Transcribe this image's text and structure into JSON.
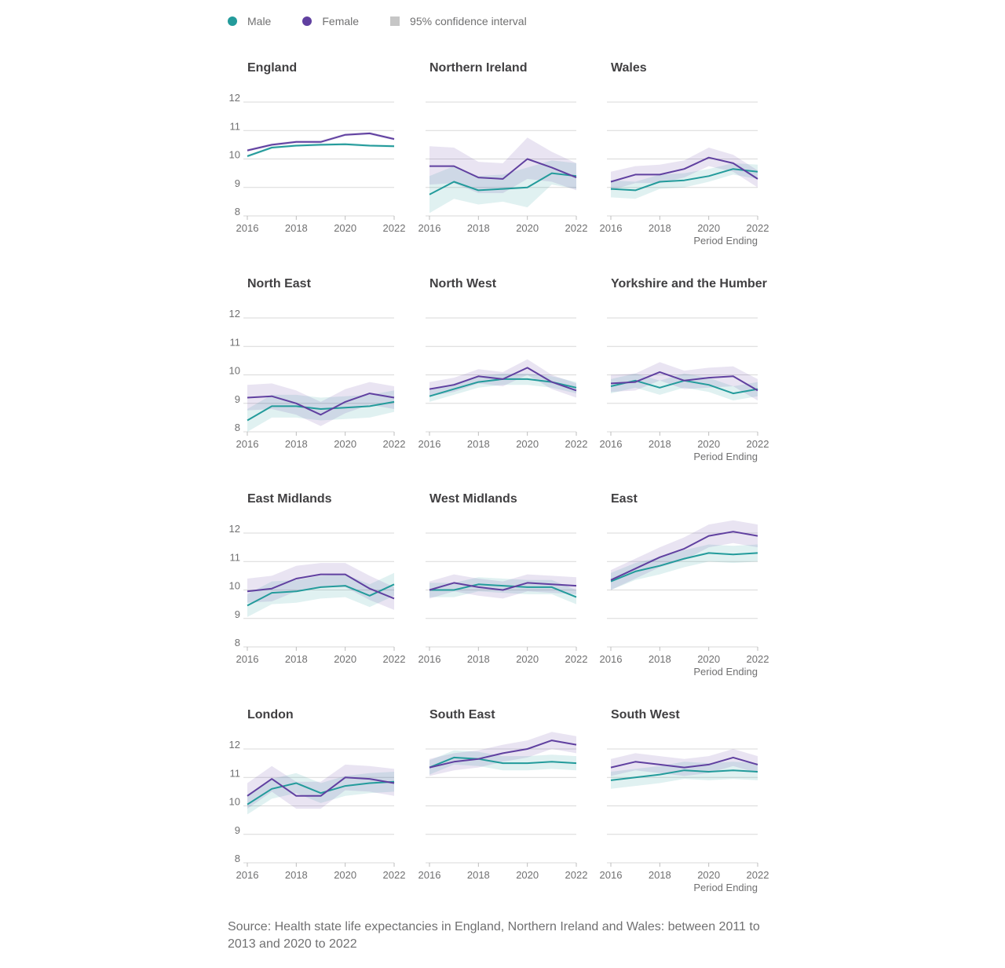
{
  "legend": {
    "male_label": "Male",
    "female_label": "Female",
    "ci_label": "95% confidence interval"
  },
  "colors": {
    "male": "#239b9b",
    "female": "#6040a0",
    "grid": "#d9d9d9",
    "axis_text": "#707071",
    "title_text": "#414042"
  },
  "source": "Source: Health state life expectancies in England, Northern Ireland and Wales: between 2011 to 2013 and 2020 to 2022",
  "chart_data": {
    "type": "line",
    "x": [
      2016,
      2017,
      2018,
      2019,
      2020,
      2021,
      2022
    ],
    "xticks": [
      "2016",
      "2018",
      "2020",
      "2022"
    ],
    "yticks": [
      "8",
      "9",
      "10",
      "11",
      "12"
    ],
    "ylim": [
      8,
      12
    ],
    "xlabel": "Period Ending",
    "panels": [
      {
        "title": "England",
        "male": [
          10.1,
          10.4,
          10.47,
          10.5,
          10.52,
          10.47,
          10.45
        ],
        "male_lo": [
          10.05,
          10.35,
          10.42,
          10.45,
          10.47,
          10.42,
          10.4
        ],
        "male_hi": [
          10.15,
          10.45,
          10.52,
          10.55,
          10.57,
          10.52,
          10.5
        ],
        "female": [
          10.3,
          10.5,
          10.6,
          10.6,
          10.85,
          10.9,
          10.7
        ],
        "female_lo": [
          10.25,
          10.45,
          10.55,
          10.55,
          10.8,
          10.85,
          10.65
        ],
        "female_hi": [
          10.35,
          10.55,
          10.65,
          10.65,
          10.9,
          10.95,
          10.75
        ]
      },
      {
        "title": "Northern Ireland",
        "male": [
          8.75,
          9.2,
          8.9,
          8.95,
          9.0,
          9.5,
          9.4
        ],
        "male_lo": [
          8.1,
          8.6,
          8.4,
          8.5,
          8.3,
          9.1,
          8.95
        ],
        "male_hi": [
          9.4,
          9.75,
          9.4,
          9.45,
          9.7,
          9.95,
          9.85
        ],
        "female": [
          9.75,
          9.75,
          9.35,
          9.3,
          10.0,
          9.7,
          9.35
        ],
        "female_lo": [
          9.1,
          9.15,
          8.8,
          8.8,
          9.3,
          9.2,
          8.9
        ],
        "female_hi": [
          10.45,
          10.4,
          9.9,
          9.85,
          10.75,
          10.25,
          9.85
        ]
      },
      {
        "title": "Wales",
        "male": [
          8.95,
          8.9,
          9.2,
          9.25,
          9.4,
          9.65,
          9.55
        ],
        "male_lo": [
          8.65,
          8.6,
          8.95,
          9.0,
          9.2,
          9.45,
          9.3
        ],
        "male_hi": [
          9.25,
          9.2,
          9.45,
          9.5,
          9.65,
          9.85,
          9.8
        ],
        "female": [
          9.2,
          9.45,
          9.45,
          9.65,
          10.05,
          9.85,
          9.3
        ],
        "female_lo": [
          8.9,
          9.15,
          9.15,
          9.35,
          9.75,
          9.55,
          9.0
        ],
        "female_hi": [
          9.55,
          9.75,
          9.8,
          9.95,
          10.4,
          10.15,
          9.6
        ]
      },
      {
        "title": "North East",
        "male": [
          8.4,
          8.9,
          8.9,
          8.8,
          8.85,
          8.9,
          9.05
        ],
        "male_lo": [
          8.0,
          8.5,
          8.5,
          8.4,
          8.45,
          8.5,
          8.7
        ],
        "male_hi": [
          8.8,
          9.3,
          9.3,
          9.2,
          9.25,
          9.3,
          9.45
        ],
        "female": [
          9.2,
          9.25,
          9.0,
          8.6,
          9.05,
          9.35,
          9.2
        ],
        "female_lo": [
          8.75,
          8.8,
          8.6,
          8.2,
          8.65,
          8.95,
          8.8
        ],
        "female_hi": [
          9.65,
          9.7,
          9.45,
          9.05,
          9.5,
          9.75,
          9.6
        ]
      },
      {
        "title": "North West",
        "male": [
          9.25,
          9.5,
          9.75,
          9.85,
          9.85,
          9.75,
          9.55
        ],
        "male_lo": [
          9.05,
          9.3,
          9.55,
          9.65,
          9.65,
          9.55,
          9.35
        ],
        "male_hi": [
          9.45,
          9.7,
          9.95,
          10.05,
          10.05,
          9.95,
          9.75
        ],
        "female": [
          9.5,
          9.65,
          9.95,
          9.85,
          10.25,
          9.75,
          9.45
        ],
        "female_lo": [
          9.25,
          9.4,
          9.7,
          9.6,
          10.0,
          9.5,
          9.2
        ],
        "female_hi": [
          9.75,
          9.9,
          10.2,
          10.1,
          10.55,
          10.0,
          9.7
        ]
      },
      {
        "title": "Yorkshire and the Humber",
        "male": [
          9.6,
          9.8,
          9.55,
          9.8,
          9.65,
          9.35,
          9.5
        ],
        "male_lo": [
          9.35,
          9.55,
          9.3,
          9.55,
          9.4,
          9.1,
          9.25
        ],
        "male_hi": [
          9.85,
          10.05,
          9.8,
          10.05,
          9.9,
          9.6,
          9.75
        ],
        "female": [
          9.7,
          9.75,
          10.1,
          9.8,
          9.9,
          9.95,
          9.45
        ],
        "female_lo": [
          9.4,
          9.45,
          9.8,
          9.5,
          9.55,
          9.6,
          9.1
        ],
        "female_hi": [
          10.0,
          10.05,
          10.45,
          10.15,
          10.25,
          10.3,
          9.85
        ]
      },
      {
        "title": "East Midlands",
        "male": [
          9.45,
          9.9,
          9.95,
          10.1,
          10.15,
          9.8,
          10.2
        ],
        "male_lo": [
          9.05,
          9.5,
          9.55,
          9.7,
          9.75,
          9.4,
          9.8
        ],
        "male_hi": [
          9.85,
          10.3,
          10.35,
          10.5,
          10.55,
          10.2,
          10.6
        ],
        "female": [
          9.95,
          10.05,
          10.4,
          10.55,
          10.55,
          10.05,
          9.7
        ],
        "female_lo": [
          9.55,
          9.6,
          9.95,
          10.1,
          10.1,
          9.65,
          9.3
        ],
        "female_hi": [
          10.4,
          10.5,
          10.85,
          10.95,
          10.95,
          10.5,
          10.1
        ]
      },
      {
        "title": "West Midlands",
        "male": [
          10.0,
          10.0,
          10.2,
          10.15,
          10.1,
          10.1,
          9.75
        ],
        "male_lo": [
          9.75,
          9.75,
          9.95,
          9.9,
          9.85,
          9.85,
          9.5
        ],
        "male_hi": [
          10.25,
          10.25,
          10.45,
          10.4,
          10.35,
          10.35,
          10.0
        ],
        "female": [
          10.0,
          10.25,
          10.1,
          10.0,
          10.25,
          10.2,
          10.15
        ],
        "female_lo": [
          9.7,
          9.95,
          9.8,
          9.7,
          9.95,
          9.9,
          9.85
        ],
        "female_hi": [
          10.3,
          10.55,
          10.4,
          10.3,
          10.55,
          10.5,
          10.45
        ]
      },
      {
        "title": "East",
        "male": [
          10.3,
          10.65,
          10.85,
          11.1,
          11.3,
          11.25,
          11.3
        ],
        "male_lo": [
          10.0,
          10.35,
          10.55,
          10.8,
          11.0,
          10.95,
          11.0
        ],
        "male_hi": [
          10.6,
          10.95,
          11.15,
          11.4,
          11.6,
          11.55,
          11.6
        ],
        "female": [
          10.35,
          10.75,
          11.15,
          11.45,
          11.9,
          12.05,
          11.9
        ],
        "female_lo": [
          10.0,
          10.4,
          10.8,
          11.05,
          11.5,
          11.65,
          11.5
        ],
        "female_hi": [
          10.7,
          11.1,
          11.5,
          11.85,
          12.3,
          12.45,
          12.3
        ]
      },
      {
        "title": "London",
        "male": [
          10.05,
          10.6,
          10.8,
          10.45,
          10.7,
          10.8,
          10.85
        ],
        "male_lo": [
          9.7,
          10.25,
          10.45,
          10.1,
          10.35,
          10.45,
          10.5
        ],
        "male_hi": [
          10.4,
          10.95,
          11.15,
          10.8,
          11.05,
          11.15,
          11.2
        ],
        "female": [
          10.35,
          10.95,
          10.35,
          10.35,
          11.0,
          10.95,
          10.8
        ],
        "female_lo": [
          9.9,
          10.5,
          9.9,
          9.9,
          10.55,
          10.5,
          10.35
        ],
        "female_hi": [
          10.8,
          11.4,
          10.85,
          10.85,
          11.45,
          11.4,
          11.3
        ]
      },
      {
        "title": "South East",
        "male": [
          11.35,
          11.7,
          11.65,
          11.5,
          11.5,
          11.55,
          11.5
        ],
        "male_lo": [
          11.1,
          11.45,
          11.4,
          11.25,
          11.25,
          11.3,
          11.25
        ],
        "male_hi": [
          11.6,
          11.95,
          11.9,
          11.75,
          11.75,
          11.8,
          11.75
        ],
        "female": [
          11.35,
          11.55,
          11.65,
          11.85,
          12.0,
          12.3,
          12.15
        ],
        "female_lo": [
          11.05,
          11.25,
          11.35,
          11.55,
          11.7,
          12.0,
          11.85
        ],
        "female_hi": [
          11.65,
          11.85,
          11.95,
          12.15,
          12.3,
          12.6,
          12.45
        ]
      },
      {
        "title": "South West",
        "male": [
          10.9,
          11.0,
          11.1,
          11.25,
          11.2,
          11.25,
          11.2
        ],
        "male_lo": [
          10.6,
          10.7,
          10.8,
          10.95,
          10.9,
          10.95,
          10.9
        ],
        "male_hi": [
          11.2,
          11.3,
          11.4,
          11.55,
          11.5,
          11.55,
          11.5
        ],
        "female": [
          11.35,
          11.55,
          11.45,
          11.35,
          11.45,
          11.7,
          11.45
        ],
        "female_lo": [
          11.05,
          11.25,
          11.15,
          11.05,
          11.15,
          11.4,
          11.15
        ],
        "female_hi": [
          11.65,
          11.85,
          11.75,
          11.65,
          11.75,
          12.0,
          11.75
        ]
      }
    ]
  }
}
